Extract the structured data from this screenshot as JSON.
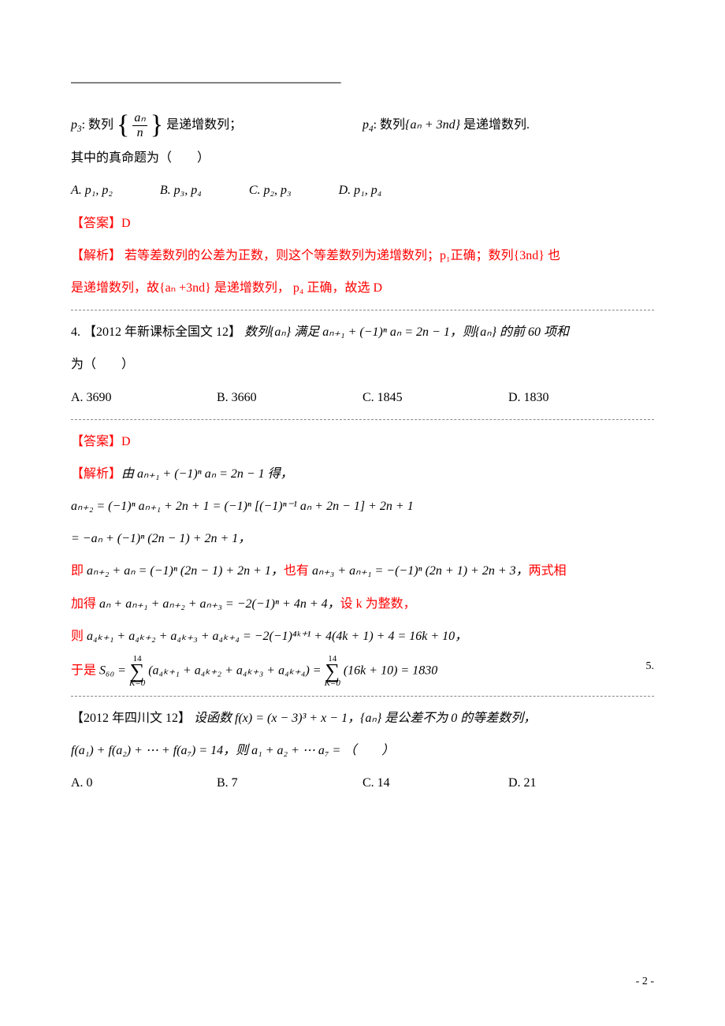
{
  "colors": {
    "text": "#000000",
    "accent_red": "#ff0000",
    "background": "#ffffff",
    "divider": "#888888"
  },
  "typography": {
    "body_fontsize_pt": 12,
    "line_height": 2.2,
    "font_family": "SimSun, Times New Roman, serif"
  },
  "header_rule": "——————————————————————————————————————————————",
  "p3p4": {
    "p3_label": "p",
    "p3_sub": "3",
    "p3_pre": ": 数列",
    "p3_frac_num": "aₙ",
    "p3_frac_den": "n",
    "p3_post": "是递增数列；",
    "p4_label": "p",
    "p4_sub": "4",
    "p4_pre": ": 数列",
    "p4_seq": "{aₙ + 3nd}",
    "p4_post": " 是递增数列."
  },
  "q3": {
    "stem": "其中的真命题为（　　）",
    "optA": "A. p₁, p₂",
    "optB": "B. p₃, p₄",
    "optC": "C. p₂, p₃",
    "optD": "D. p₁, p₄",
    "ans_label": "【答案】D",
    "exp_label": "【解析】",
    "exp_line1": " 若等差数列的公差为正数，则这个等差数列为递增数列；p₁正确；数列{3nd} 也",
    "exp_line2": "是递增数列，故{aₙ +3nd} 是递增数列， p₄ 正确，故选 D"
  },
  "q4": {
    "number": "4.",
    "source": "【2012 年新课标全国文 12】",
    "stem_a": "数列{aₙ} 满足 aₙ₊₁ + (−1)ⁿ aₙ = 2n − 1，则{aₙ} 的前 60 项和",
    "stem_b": "为（　　）",
    "optA": "A. 3690",
    "optB": "B. 3660",
    "optC": "C. 1845",
    "optD": "D. 1830",
    "ans_label": "【答案】D",
    "exp_label": "【解析】",
    "exp_l1": "由 aₙ₊₁ + (−1)ⁿ aₙ = 2n − 1 得，",
    "exp_l2": "aₙ₊₂ = (−1)ⁿ aₙ₊₁ + 2n + 1 = (−1)ⁿ [(−1)ⁿ⁻¹ aₙ + 2n − 1] + 2n + 1",
    "exp_l3": "= −aₙ + (−1)ⁿ (2n − 1) + 2n + 1，",
    "exp_l4_pre": "即",
    "exp_l4": " aₙ₊₂ + aₙ = (−1)ⁿ (2n − 1) + 2n + 1，",
    "exp_l4_mid": "也有",
    "exp_l4b": " aₙ₊₃ + aₙ₊₁ = −(−1)ⁿ (2n + 1) + 2n + 3，",
    "exp_l4_post": "两式相",
    "exp_l5_pre": "加得",
    "exp_l5": " aₙ + aₙ₊₁ + aₙ₊₂ + aₙ₊₃ = −2(−1)ⁿ + 4n + 4，",
    "exp_l5_post": "设 k 为整数，",
    "exp_l6_pre": "则",
    "exp_l6": " a₄ₖ₊₁ + a₄ₖ₊₂ + a₄ₖ₊₃ + a₄ₖ₊₄ = −2(−1)⁴ᵏ⁺¹ + 4(4k + 1) + 4 = 16k + 10，",
    "exp_l7_pre": "于是",
    "exp_l7_a": " S₆₀ = ",
    "sum_top": "14",
    "sum_bot": "K=0",
    "exp_l7_b": " (a₄ₖ₊₁ + a₄ₖ₊₂ + a₄ₖ₊₃ + a₄ₖ₊₄) = ",
    "exp_l7_c": " (16k + 10) = 1830"
  },
  "q5": {
    "trailing_number": "5.",
    "source": "【2012 年四川文 12】",
    "stem_a": "设函数 f(x) = (x − 3)³ + x − 1，{aₙ} 是公差不为 0 的等差数列，",
    "stem_b": "f(a₁) + f(a₂) + ⋯ + f(a₇) = 14，则 a₁ + a₂ + ⋯ a₇ = （　　）",
    "optA": "A. 0",
    "optB": "B. 7",
    "optC": "C. 14",
    "optD": "D. 21"
  },
  "footer": "- 2 -"
}
